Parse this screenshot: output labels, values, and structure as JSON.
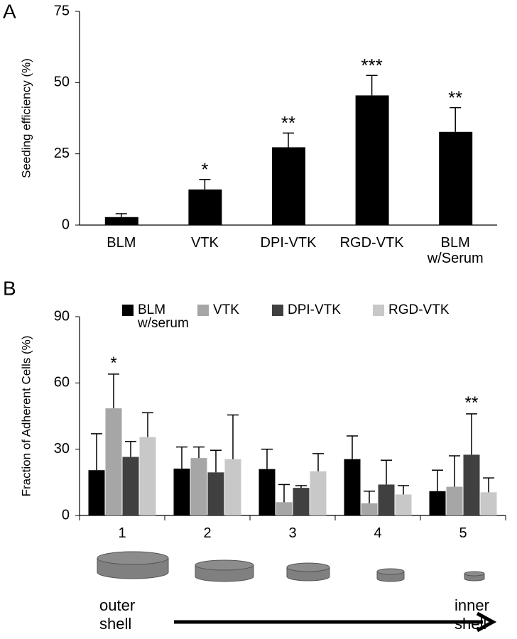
{
  "chart_data": [
    {
      "type": "bar",
      "label": "A",
      "ylabel": "Seeding efficiency (%)",
      "categories": [
        "BLM",
        "VTK",
        "DPI-VTK",
        "RGD-VTK",
        "BLM w/Serum"
      ],
      "values": [
        2.8,
        12.5,
        27.3,
        45.5,
        32.7
      ],
      "errors": [
        1.2,
        3.5,
        5,
        7,
        8.5
      ],
      "annotations": [
        null,
        "*",
        "**",
        "***",
        "**"
      ],
      "color": "#000000",
      "ylim": [
        0,
        75
      ],
      "yticks": [
        0,
        25,
        50,
        75
      ],
      "grid": false
    },
    {
      "type": "bar",
      "label": "B",
      "ylabel": "Fraction of Adherent Cells (%)",
      "categories": [
        "1",
        "2",
        "3",
        "4",
        "5"
      ],
      "series": [
        {
          "name": "BLM w/serum",
          "color": "#000000",
          "values": [
            20.5,
            21.2,
            21,
            25.5,
            11
          ],
          "errors": [
            16.5,
            9.8,
            9,
            10.5,
            9.5
          ]
        },
        {
          "name": "VTK",
          "color": "#a6a6a6",
          "values": [
            48.5,
            26,
            6,
            5.5,
            13
          ],
          "errors": [
            15.5,
            5,
            8,
            5.5,
            14
          ]
        },
        {
          "name": "DPI-VTK",
          "color": "#404040",
          "values": [
            26.5,
            19.5,
            12.5,
            14,
            27.5
          ],
          "errors": [
            7,
            10,
            1,
            11,
            18.5
          ]
        },
        {
          "name": "RGD-VTK",
          "color": "#c8c8c8",
          "values": [
            35.5,
            25.5,
            20,
            9.5,
            10.5
          ],
          "errors": [
            11,
            20,
            8,
            4,
            6.5
          ]
        }
      ],
      "annotations": [
        {
          "text": "*",
          "category": 0,
          "series": 1
        },
        {
          "text": "**",
          "category": 4,
          "series": 2
        }
      ],
      "x_start_label": "outer shell",
      "x_end_label": "inner shell",
      "ylim": [
        0,
        90
      ],
      "yticks": [
        0,
        30,
        60,
        90
      ],
      "grid": false,
      "legend": "top"
    }
  ]
}
